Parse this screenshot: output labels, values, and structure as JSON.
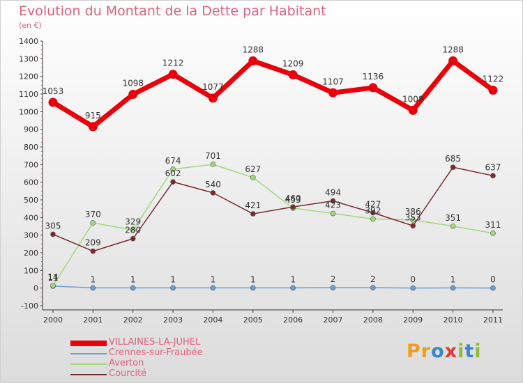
{
  "header": {
    "title": "Evolution du Montant de la Dette par Habitant",
    "unit": "(en €)"
  },
  "brand": {
    "text": "Proxiti",
    "letter_colors": [
      "#f39a1e",
      "#f39a1e",
      "#3a86c8",
      "#e23a2e",
      "#8dbd2c",
      "#3a86c8",
      "#8dbd2c"
    ]
  },
  "chart_data": {
    "type": "line",
    "title": "Evolution du Montant de la Dette par Habitant",
    "ylabel": "(en €)",
    "xlabel": "",
    "x": [
      "2000",
      "2001",
      "2002",
      "2003",
      "2004",
      "2005",
      "2006",
      "2007",
      "2008",
      "2009",
      "2010",
      "2011"
    ],
    "ylim": [
      -100,
      1400
    ],
    "yticks": [
      -100,
      0,
      100,
      200,
      300,
      400,
      500,
      600,
      700,
      800,
      900,
      1000,
      1100,
      1200,
      1300,
      1400
    ],
    "grid": false,
    "legend": "bottom-left",
    "series": [
      {
        "name": "VILLAINES-LA-JUHEL",
        "color": "#e8000b",
        "values": [
          1053,
          915,
          1098,
          1212,
          1077,
          1288,
          1209,
          1107,
          1136,
          1008,
          1288,
          1122
        ],
        "labels": [
          "1053",
          "915",
          "1098",
          "1212",
          "1077",
          "1288",
          "1209",
          "1107",
          "1136",
          "1008",
          "1288",
          "1122"
        ]
      },
      {
        "name": "Crennes-sur-Fraubée",
        "color": "#6a9ed0",
        "values": [
          11,
          1,
          1,
          1,
          1,
          1,
          1,
          2,
          2,
          0,
          1,
          0
        ],
        "labels": [
          "11",
          "1",
          "1",
          "1",
          "1",
          "1",
          "1",
          "2",
          "2",
          "0",
          "1",
          "0"
        ]
      },
      {
        "name": "Averton",
        "color": "#9fd97a",
        "values": [
          14,
          370,
          329,
          674,
          701,
          627,
          453,
          423,
          392,
          386,
          351,
          311
        ],
        "labels": [
          "14",
          "370",
          "329",
          "674",
          "701",
          "627",
          "453",
          "423",
          "392",
          "386",
          "351",
          "311"
        ]
      },
      {
        "name": "Courcité",
        "color": "#7a2a2a",
        "values": [
          305,
          209,
          280,
          602,
          540,
          421,
          460,
          494,
          427,
          353,
          685,
          637
        ],
        "labels": [
          "305",
          "209",
          "280",
          "602",
          "540",
          "421",
          "460",
          "494",
          "427",
          "353",
          "685",
          "637"
        ]
      }
    ]
  }
}
